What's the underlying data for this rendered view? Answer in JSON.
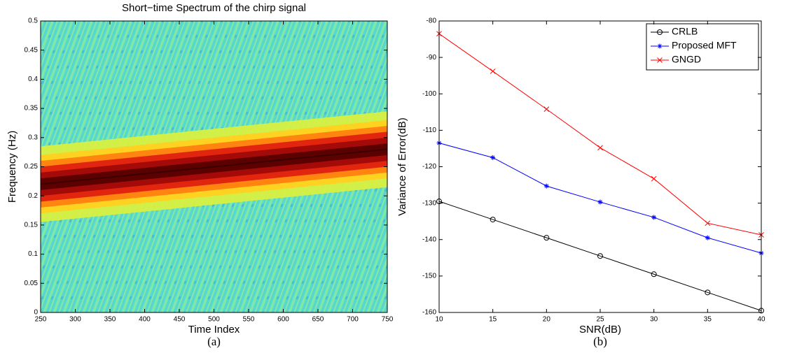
{
  "chart_data": [
    {
      "type": "spectrogram",
      "title": "Short−time Spectrum of the chirp signal",
      "xlabel": "Time Index",
      "ylabel": "Frequency (Hz)",
      "caption": "(a)",
      "x": [
        250,
        750
      ],
      "values": [
        0.22,
        0.28
      ],
      "xlim": [
        250,
        750
      ],
      "xticks": [
        250,
        300,
        350,
        400,
        450,
        500,
        550,
        600,
        650,
        700,
        750
      ],
      "ylim": [
        0,
        0.5
      ],
      "yticks": [
        0,
        0.05,
        0.1,
        0.15,
        0.2,
        0.25,
        0.3,
        0.35,
        0.4,
        0.45,
        0.5
      ]
    },
    {
      "type": "line",
      "xlabel": "SNR(dB)",
      "ylabel": "Variance of Error(dB)",
      "caption": "(b)",
      "x": [
        10,
        15,
        20,
        25,
        30,
        35,
        40
      ],
      "series": [
        {
          "name": "CRLB",
          "color": "#000000",
          "marker": "o",
          "values": [
            -129.5,
            -134.5,
            -139.5,
            -144.5,
            -149.5,
            -154.5,
            -159.5
          ]
        },
        {
          "name": "Proposed MFT",
          "color": "#0000ff",
          "marker": "*",
          "values": [
            -113.5,
            -117.5,
            -125.3,
            -129.7,
            -133.9,
            -139.5,
            -143.7
          ]
        },
        {
          "name": "GNGD",
          "color": "#ff0000",
          "marker": "x",
          "values": [
            -83.5,
            -93.8,
            -104.2,
            -114.8,
            -123.3,
            -135.5,
            -138.7
          ]
        }
      ],
      "xlim": [
        10,
        40
      ],
      "xticks": [
        10,
        15,
        20,
        25,
        30,
        35,
        40
      ],
      "ylim": [
        -160,
        -80
      ],
      "yticks": [
        -160,
        -150,
        -140,
        -130,
        -120,
        -110,
        -100,
        -90,
        -80
      ],
      "legend": "upper right"
    }
  ]
}
